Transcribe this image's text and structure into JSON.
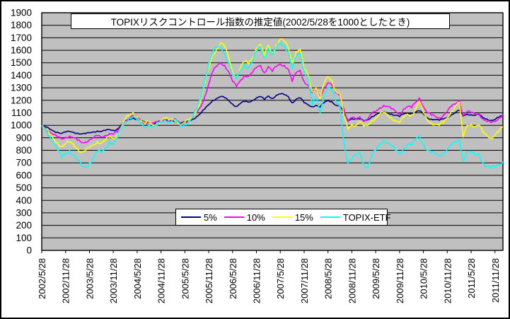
{
  "chart_data": {
    "type": "line",
    "title": "TOPIXリスクコントロール指数の推定値(2002/5/28を1000としたとき)",
    "xlabel": "",
    "ylabel": "",
    "ylim": [
      0,
      1900
    ],
    "ytick_step": 100,
    "grid": "horizontal",
    "grid_color": "#000000",
    "plot_bg_color": "#C0C0C0",
    "legend_position": "bottom-center",
    "x_tick_rotation": 90,
    "x_tick_labels": [
      "2002/5/28",
      "2002/11/28",
      "2003/5/28",
      "2003/11/28",
      "2004/5/28",
      "2004/11/28",
      "2005/5/28",
      "2005/11/28",
      "2006/5/28",
      "2006/11/28",
      "2007/5/28",
      "2007/11/28",
      "2008/5/28",
      "2008/11/28",
      "2009/5/28",
      "2009/11/28",
      "2010/5/28",
      "2010/11/28",
      "2011/5/28",
      "2011/11/28"
    ],
    "x_resolution": "monthly points from 2002/5 to 2012/1, ticks every 6 months",
    "series": [
      {
        "name": "5%",
        "color": "#000080",
        "values": [
          1000,
          985,
          970,
          955,
          945,
          935,
          945,
          950,
          945,
          938,
          930,
          932,
          940,
          948,
          955,
          950,
          958,
          965,
          960,
          970,
          1000,
          1030,
          1045,
          1060,
          1050,
          1035,
          1020,
          1030,
          1015,
          1025,
          1030,
          1040,
          1035,
          1040,
          1030,
          1015,
          1025,
          1035,
          1050,
          1070,
          1095,
          1130,
          1165,
          1200,
          1215,
          1230,
          1220,
          1200,
          1170,
          1150,
          1175,
          1190,
          1185,
          1200,
          1220,
          1230,
          1205,
          1235,
          1215,
          1240,
          1250,
          1245,
          1230,
          1180,
          1210,
          1220,
          1180,
          1165,
          1150,
          1160,
          1145,
          1180,
          1200,
          1190,
          1160,
          1150,
          1100,
          1040,
          1055,
          1050,
          1050,
          1035,
          1045,
          1070,
          1085,
          1095,
          1105,
          1100,
          1090,
          1080,
          1070,
          1090,
          1100,
          1095,
          1105,
          1115,
          1090,
          1060,
          1050,
          1045,
          1040,
          1050,
          1065,
          1085,
          1100,
          1120,
          1075,
          1090,
          1085,
          1080,
          1085,
          1060,
          1050,
          1040,
          1045,
          1065,
          1075
        ]
      },
      {
        "name": "10%",
        "color": "#FF00FF",
        "values": [
          1000,
          975,
          950,
          925,
          905,
          890,
          905,
          915,
          900,
          880,
          862,
          868,
          885,
          900,
          915,
          905,
          920,
          935,
          928,
          945,
          990,
          1040,
          1060,
          1080,
          1060,
          1035,
          1015,
          1030,
          1010,
          1025,
          1035,
          1050,
          1040,
          1050,
          1035,
          1010,
          1025,
          1040,
          1065,
          1100,
          1150,
          1230,
          1330,
          1430,
          1470,
          1500,
          1480,
          1430,
          1350,
          1310,
          1360,
          1400,
          1390,
          1420,
          1460,
          1480,
          1420,
          1470,
          1430,
          1470,
          1490,
          1480,
          1450,
          1350,
          1420,
          1440,
          1350,
          1320,
          1260,
          1280,
          1230,
          1300,
          1340,
          1320,
          1260,
          1240,
          1130,
          1030,
          1060,
          1050,
          1070,
          1040,
          1050,
          1090,
          1110,
          1140,
          1160,
          1150,
          1130,
          1110,
          1090,
          1130,
          1150,
          1140,
          1180,
          1220,
          1150,
          1100,
          1080,
          1070,
          1060,
          1080,
          1110,
          1150,
          1170,
          1200,
          1080,
          1110,
          1100,
          1090,
          1095,
          1050,
          1030,
          1020,
          1030,
          1060,
          1085
        ]
      },
      {
        "name": "15%",
        "color": "#FFFF00",
        "values": [
          1000,
          965,
          930,
          890,
          860,
          830,
          850,
          865,
          845,
          815,
          785,
          795,
          820,
          845,
          870,
          858,
          880,
          905,
          895,
          925,
          985,
          1050,
          1075,
          1100,
          1070,
          1035,
          1010,
          1030,
          1000,
          1020,
          1035,
          1055,
          1040,
          1055,
          1035,
          1000,
          1020,
          1040,
          1075,
          1125,
          1200,
          1330,
          1460,
          1560,
          1610,
          1660,
          1630,
          1540,
          1430,
          1390,
          1460,
          1510,
          1490,
          1540,
          1620,
          1650,
          1550,
          1640,
          1570,
          1640,
          1690,
          1670,
          1620,
          1500,
          1590,
          1610,
          1450,
          1400,
          1270,
          1300,
          1210,
          1330,
          1390,
          1360,
          1270,
          1250,
          1080,
          970,
          1010,
          1000,
          1030,
          990,
          1000,
          1040,
          1060,
          1090,
          1100,
          1080,
          1060,
          1040,
          1020,
          1060,
          1090,
          1080,
          1130,
          1190,
          1100,
          1040,
          1020,
          1010,
          1000,
          1020,
          1060,
          1110,
          1150,
          1185,
          905,
          1000,
          1010,
          990,
          1000,
          940,
          920,
          900,
          925,
          950,
          985
        ]
      },
      {
        "name": "TOPIX-ETF",
        "color": "#00FFFF",
        "values": [
          1000,
          960,
          915,
          860,
          800,
          740,
          780,
          800,
          760,
          720,
          680,
          665,
          700,
          740,
          790,
          780,
          820,
          870,
          850,
          900,
          970,
          1030,
          1060,
          1070,
          1040,
          1010,
          985,
          1010,
          980,
          1000,
          1020,
          1045,
          1030,
          1045,
          1025,
          985,
          1010,
          1035,
          1070,
          1130,
          1220,
          1360,
          1500,
          1590,
          1620,
          1615,
          1580,
          1500,
          1400,
          1370,
          1440,
          1490,
          1460,
          1510,
          1590,
          1630,
          1540,
          1620,
          1560,
          1620,
          1660,
          1640,
          1590,
          1450,
          1550,
          1570,
          1430,
          1380,
          1160,
          1220,
          1100,
          1250,
          1310,
          1280,
          1180,
          1150,
          870,
          700,
          730,
          760,
          780,
          690,
          665,
          750,
          800,
          850,
          880,
          860,
          830,
          800,
          770,
          820,
          850,
          840,
          880,
          920,
          850,
          800,
          780,
          770,
          760,
          780,
          810,
          840,
          860,
          885,
          715,
          790,
          780,
          760,
          770,
          700,
          670,
          655,
          665,
          690,
          710
        ]
      }
    ]
  }
}
